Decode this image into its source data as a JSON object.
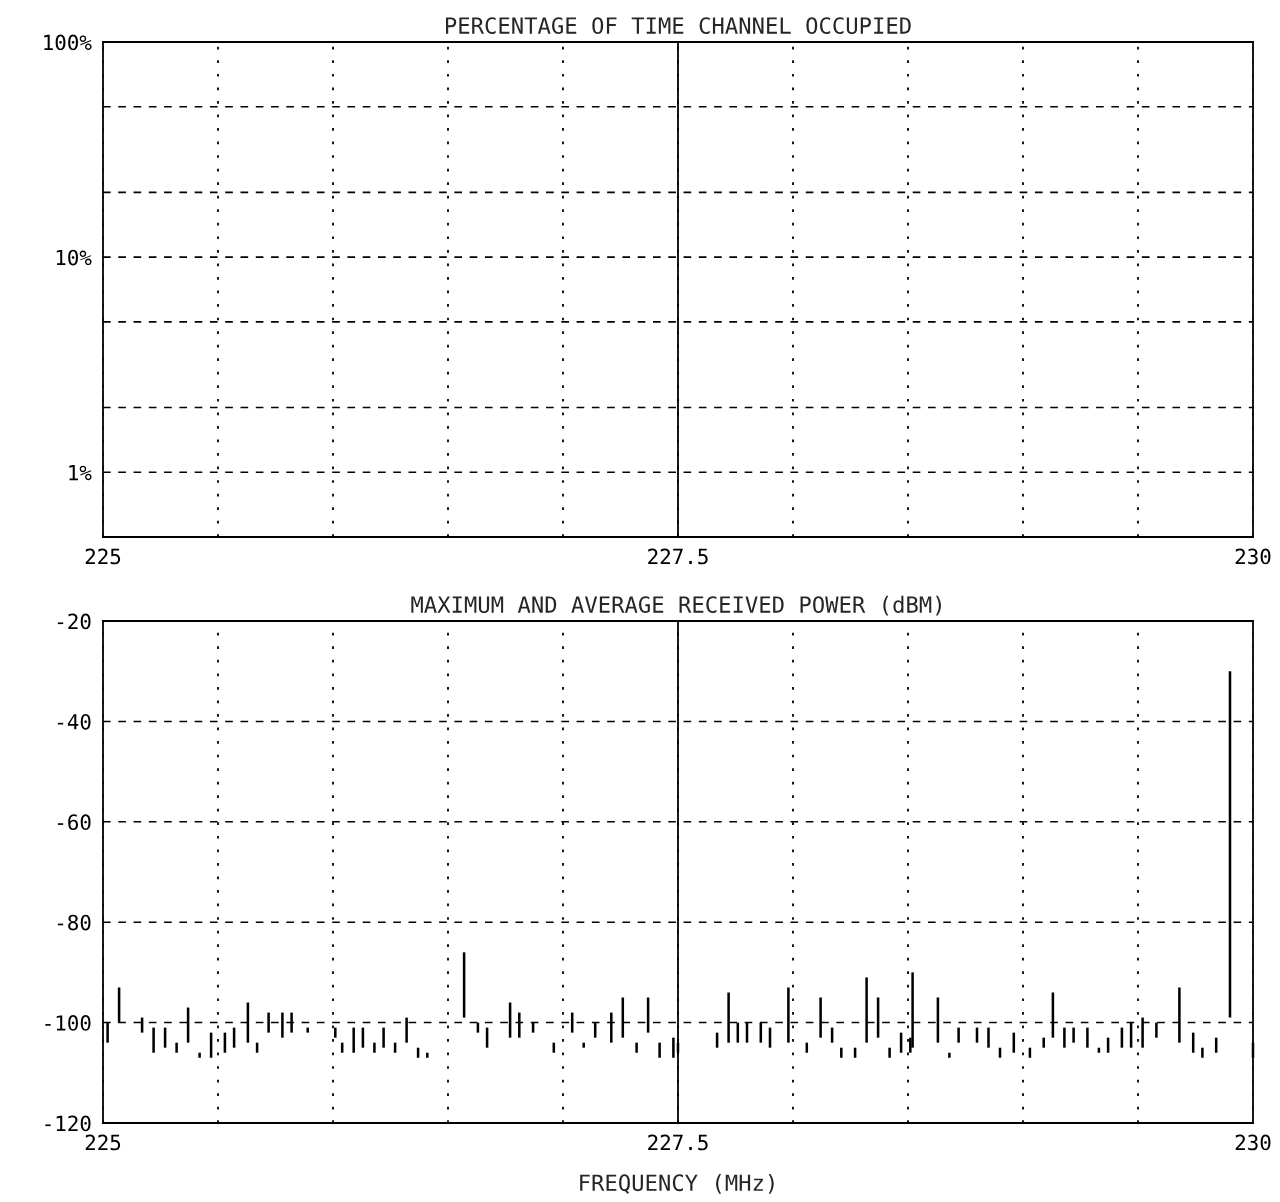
{
  "chart_data": [
    {
      "type": "line",
      "title": "PERCENTAGE OF TIME CHANNEL OCCUPIED",
      "xlim": [
        225,
        230
      ],
      "xticks": [
        225,
        {
          "value": 225.5,
          "label": null
        },
        {
          "value": 226,
          "label": null
        },
        {
          "value": 226.5,
          "label": null
        },
        {
          "value": 227,
          "label": null
        },
        227.5,
        {
          "value": 228,
          "label": null
        },
        {
          "value": 228.5,
          "label": null
        },
        {
          "value": 229,
          "label": null
        },
        {
          "value": 229.5,
          "label": null
        },
        230
      ],
      "log": "y",
      "ylim": [
        0.5,
        100
      ],
      "yticks": [
        {
          "value": 1,
          "label": "1%"
        },
        {
          "value": 2,
          "label": null
        },
        {
          "value": 5,
          "label": null
        },
        {
          "value": 10,
          "label": "10%"
        },
        {
          "value": 20,
          "label": null
        },
        {
          "value": 50,
          "label": null
        },
        {
          "value": 100,
          "label": "100%"
        }
      ],
      "grid": true,
      "ref_lines": [
        {
          "axis": "x",
          "value": 227.5,
          "label": null,
          "line_style": "solid",
          "color": "#000000"
        }
      ]
    },
    {
      "type": "bar",
      "title": "MAXIMUM AND AVERAGE RECEIVED POWER (dBM)",
      "xlabel": "FREQUENCY (MHz)",
      "color": "#000000",
      "x": [
        225.02,
        225.07,
        225.17,
        225.22,
        225.27,
        225.32,
        225.37,
        225.42,
        225.47,
        225.53,
        225.57,
        225.63,
        225.67,
        225.72,
        225.78,
        225.82,
        225.89,
        226.01,
        226.04,
        226.09,
        226.13,
        226.18,
        226.22,
        226.27,
        226.32,
        226.37,
        226.41,
        226.57,
        226.63,
        226.67,
        226.77,
        226.81,
        226.87,
        226.96,
        227.04,
        227.09,
        227.14,
        227.21,
        227.26,
        227.32,
        227.37,
        227.42,
        227.48,
        227.5,
        227.67,
        227.72,
        227.76,
        227.8,
        227.86,
        227.9,
        227.98,
        228.06,
        228.12,
        228.17,
        228.21,
        228.27,
        228.32,
        228.37,
        228.42,
        228.47,
        228.51,
        228.52,
        228.63,
        228.68,
        228.72,
        228.8,
        228.85,
        228.9,
        228.96,
        229.03,
        229.09,
        229.13,
        229.18,
        229.22,
        229.28,
        229.33,
        229.37,
        229.43,
        229.47,
        229.52,
        229.58,
        229.68,
        229.74,
        229.78,
        229.84,
        229.9,
        230.0
      ],
      "base": [
        -104,
        -100,
        -102,
        -106,
        -105,
        -106,
        -104,
        -107,
        -107,
        -106,
        -105,
        -104,
        -106,
        -102,
        -103,
        -102,
        -102,
        -103,
        -106,
        -106,
        -105,
        -106,
        -105,
        -106,
        -104,
        -107,
        -107,
        -99,
        -102,
        -105,
        -103,
        -103,
        -102,
        -106,
        -102,
        -105,
        -103,
        -104,
        -103,
        -106,
        -102,
        -107,
        -107,
        -106,
        -105,
        -104,
        -104,
        -104,
        -104,
        -105,
        -104,
        -106,
        -103,
        -104,
        -107,
        -107,
        -104,
        -103,
        -107,
        -106,
        -106,
        -105,
        -104,
        -107,
        -104,
        -104,
        -105,
        -107,
        -106,
        -107,
        -105,
        -103,
        -105,
        -104,
        -105,
        -106,
        -106,
        -105,
        -105,
        -105,
        -103,
        -104,
        -106,
        -107,
        -106,
        -99,
        -107
      ],
      "values": [
        4,
        7,
        3,
        5,
        4,
        2,
        7,
        1,
        5,
        4,
        4,
        8,
        2,
        4,
        5,
        4,
        1,
        2,
        2,
        5,
        4,
        2,
        4,
        2,
        5,
        2,
        1,
        13,
        2,
        4,
        7,
        5,
        2,
        2,
        4,
        1,
        3,
        6,
        8,
        2,
        7,
        3,
        4,
        2,
        3,
        10,
        4,
        4,
        4,
        4,
        11,
        2,
        8,
        3,
        2,
        2,
        13,
        8,
        2,
        4,
        3,
        15,
        9,
        1,
        3,
        3,
        4,
        2,
        4,
        2,
        2,
        9,
        4,
        3,
        4,
        1,
        3,
        4,
        5,
        6,
        3,
        11,
        4,
        2,
        3,
        69,
        3
      ],
      "xlim": [
        225,
        230
      ],
      "xticks": [
        225,
        {
          "value": 225.5,
          "label": null
        },
        {
          "value": 226,
          "label": null
        },
        {
          "value": 226.5,
          "label": null
        },
        {
          "value": 227,
          "label": null
        },
        227.5,
        {
          "value": 228,
          "label": null
        },
        {
          "value": 228.5,
          "label": null
        },
        {
          "value": 229,
          "label": null
        },
        {
          "value": 229.5,
          "label": null
        },
        230
      ],
      "ylim": [
        -120,
        -20
      ],
      "yticks": [
        -120,
        -100,
        -80,
        -60,
        -40,
        -20
      ],
      "grid": true,
      "ref_lines": [
        {
          "axis": "x",
          "value": 227.5,
          "label": null,
          "line_style": "solid",
          "color": "#000000"
        }
      ]
    }
  ]
}
